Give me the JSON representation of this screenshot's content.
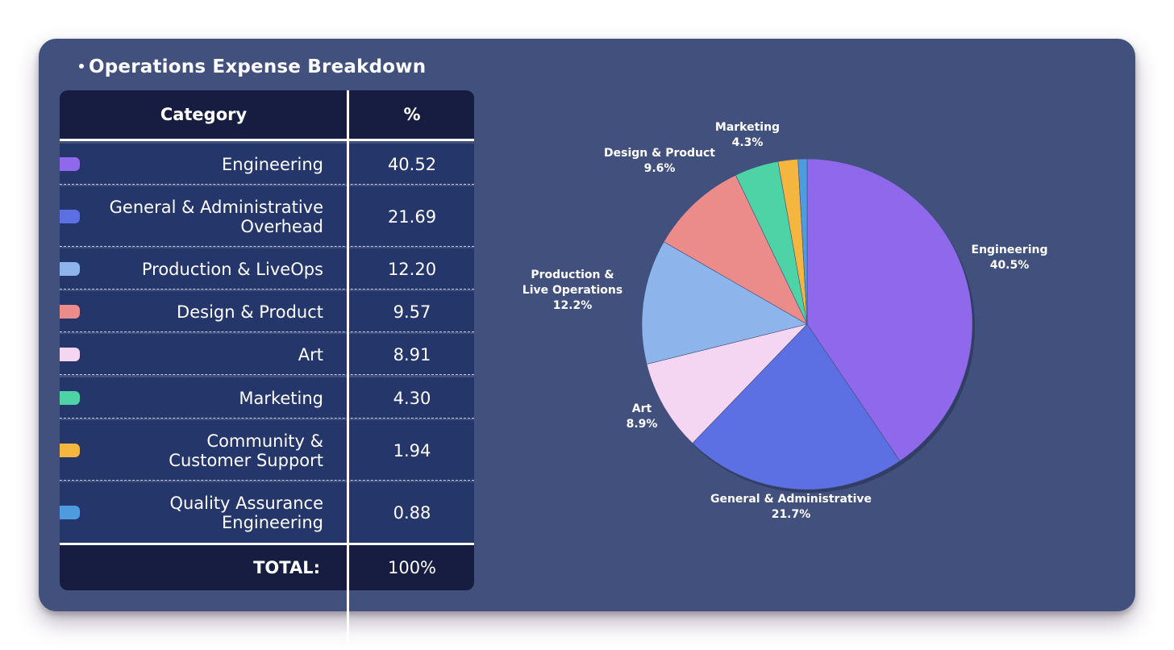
{
  "title": "Operations Expense Breakdown",
  "table": {
    "headers": {
      "category": "Category",
      "percent": "%"
    },
    "rows": [
      {
        "lines": [
          "Engineering"
        ],
        "value": "40.52",
        "color": "#8f68eb"
      },
      {
        "lines": [
          "General & Administrative",
          "Overhead"
        ],
        "value": "21.69",
        "color": "#5c70e4"
      },
      {
        "lines": [
          "Production & LiveOps"
        ],
        "value": "12.20",
        "color": "#8db4eb"
      },
      {
        "lines": [
          "Design & Product"
        ],
        "value": "9.57",
        "color": "#ec8c8a"
      },
      {
        "lines": [
          "Art"
        ],
        "value": "8.91",
        "color": "#f4d5f2"
      },
      {
        "lines": [
          "Marketing"
        ],
        "value": "4.30",
        "color": "#4dd3a6"
      },
      {
        "lines": [
          "Community &",
          "Customer Support"
        ],
        "value": "1.94",
        "color": "#f4b63f"
      },
      {
        "lines": [
          "Quality Assurance",
          "Engineering"
        ],
        "value": "0.88",
        "color": "#4e9be0"
      }
    ],
    "total_label": "TOTAL:",
    "total_value": "100%"
  },
  "chart_data": {
    "type": "pie",
    "title": "Operations Expense Breakdown",
    "start_angle_deg": 0,
    "direction": "clockwise",
    "slices": [
      {
        "name": "Engineering",
        "label_lines": [
          "Engineering"
        ],
        "value": 40.52,
        "pct_label": "40.5%",
        "color": "#8f68eb"
      },
      {
        "name": "General & Administrative Overhead",
        "label_lines": [
          "General & Administrative"
        ],
        "value": 21.69,
        "pct_label": "21.7%",
        "color": "#5c70e4"
      },
      {
        "name": "Art",
        "label_lines": [
          "Art"
        ],
        "value": 8.91,
        "pct_label": "8.9%",
        "color": "#f4d5f2"
      },
      {
        "name": "Production & LiveOps",
        "label_lines": [
          "Production &",
          "Live Operations"
        ],
        "value": 12.2,
        "pct_label": "12.2%",
        "color": "#8db4eb"
      },
      {
        "name": "Design & Product",
        "label_lines": [
          "Design & Product"
        ],
        "value": 9.57,
        "pct_label": "9.6%",
        "color": "#ec8c8a"
      },
      {
        "name": "Marketing",
        "label_lines": [
          "Marketing"
        ],
        "value": 4.3,
        "pct_label": "4.3%",
        "color": "#4dd3a6"
      },
      {
        "name": "Community & Customer Support",
        "label_lines": [],
        "value": 1.94,
        "pct_label": "",
        "color": "#f4b63f"
      },
      {
        "name": "Quality Assurance Engineering",
        "label_lines": [],
        "value": 0.88,
        "pct_label": "",
        "color": "#4e9be0"
      }
    ]
  }
}
